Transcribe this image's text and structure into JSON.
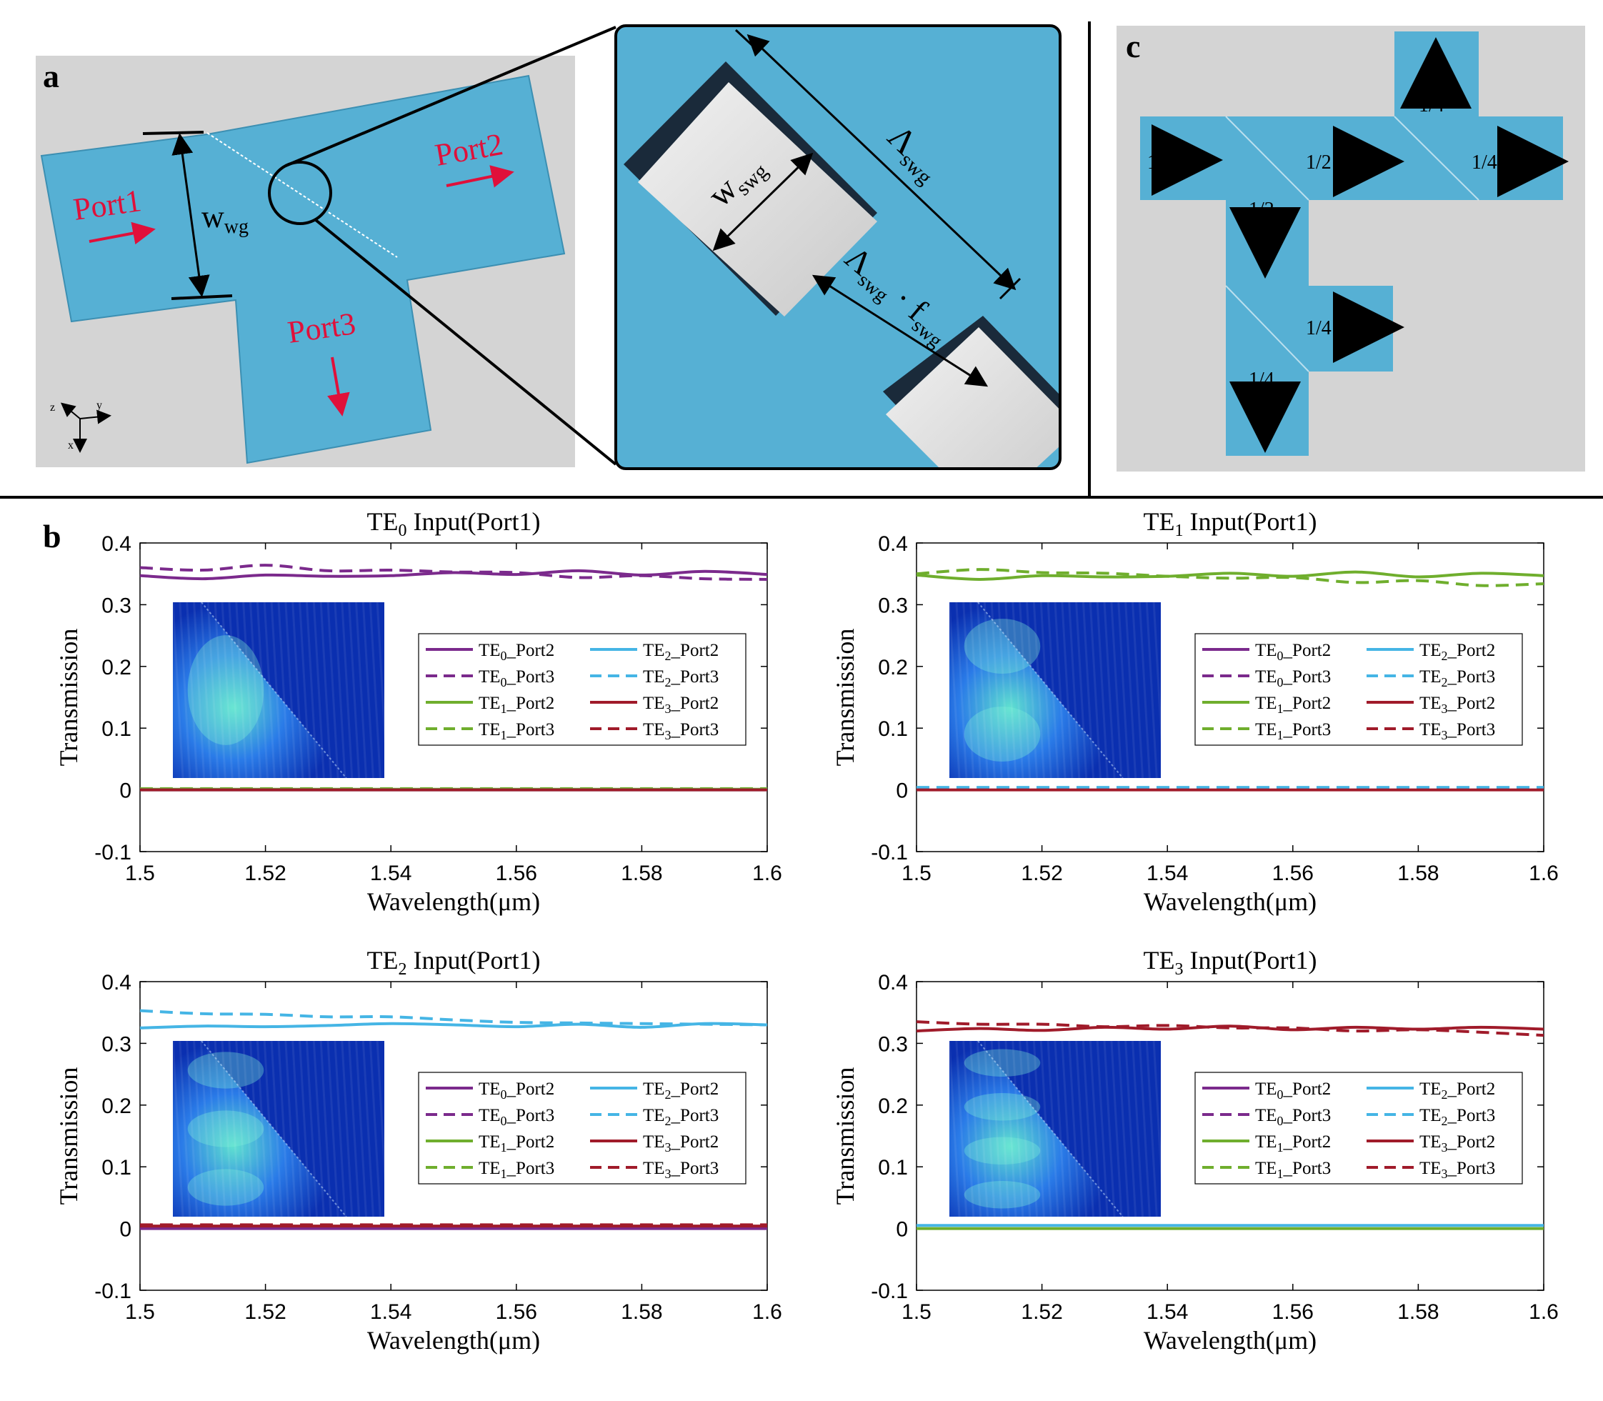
{
  "figure": {
    "panel_a": {
      "letter": "a",
      "labels": {
        "port1": "Port1",
        "port2": "Port2",
        "port3": "Port3",
        "w_wg": "w",
        "w_wg_sub": "wg"
      },
      "axes_triad": {
        "z": "z",
        "y": "y",
        "x": "x"
      },
      "zoom": {
        "lambda": "Λ",
        "lambda_sub": "swg",
        "w": "w",
        "w_sub": "swg",
        "f_expr_lambda": "Λ",
        "f_expr_sub1": "swg",
        "f_expr_dot": "·",
        "f_expr_f": "f",
        "f_expr_sub2": "swg"
      }
    },
    "panel_b": {
      "letter": "b"
    },
    "panel_c": {
      "letter": "c",
      "labels": {
        "input": "1",
        "half_right": "1/2",
        "quarter_up": "1/4",
        "quarter_right_top": "1/4",
        "half_down": "1/2",
        "quarter_right_bottom": "1/4",
        "quarter_down": "1/4"
      }
    },
    "colors": {
      "waveguide": "#56b0d4",
      "background": "#d4d4d4",
      "arrow_red": "#e0103a",
      "TE0": "#7b2a8c",
      "TE1": "#6fae2d",
      "TE2": "#45b5e5",
      "TE3": "#a01b2a"
    }
  },
  "legend_entries": [
    {
      "prefix": "TE",
      "sub": "0",
      "suffix": "_Port2",
      "mode": "TE0",
      "dash": false
    },
    {
      "prefix": "TE",
      "sub": "2",
      "suffix": "_Port2",
      "mode": "TE2",
      "dash": false
    },
    {
      "prefix": "TE",
      "sub": "0",
      "suffix": "_Port3",
      "mode": "TE0",
      "dash": true
    },
    {
      "prefix": "TE",
      "sub": "2",
      "suffix": "_Port3",
      "mode": "TE2",
      "dash": true
    },
    {
      "prefix": "TE",
      "sub": "1",
      "suffix": "_Port2",
      "mode": "TE1",
      "dash": false
    },
    {
      "prefix": "TE",
      "sub": "3",
      "suffix": "_Port2",
      "mode": "TE3",
      "dash": false
    },
    {
      "prefix": "TE",
      "sub": "1",
      "suffix": "_Port3",
      "mode": "TE1",
      "dash": true
    },
    {
      "prefix": "TE",
      "sub": "3",
      "suffix": "_Port3",
      "mode": "TE3",
      "dash": true
    }
  ],
  "chart_data": [
    {
      "type": "line",
      "title_prefix": "TE",
      "title_sub": "0",
      "title_suffix": " Input(Port1)",
      "xlabel": "Wavelength(μm)",
      "ylabel": "Transmission",
      "xlim": [
        1.5,
        1.6
      ],
      "ylim": [
        -0.1,
        0.4
      ],
      "xticks": [
        "1.5",
        "1.52",
        "1.54",
        "1.56",
        "1.58",
        "1.6"
      ],
      "yticks": [
        "-0.1",
        "0",
        "0.1",
        "0.2",
        "0.3",
        "0.4"
      ],
      "x": [
        1.5,
        1.51,
        1.52,
        1.53,
        1.54,
        1.55,
        1.56,
        1.57,
        1.58,
        1.59,
        1.6
      ],
      "series": [
        {
          "name": "TE0_Port2",
          "mode": "TE0",
          "dash": false,
          "values": [
            0.347,
            0.342,
            0.348,
            0.346,
            0.347,
            0.352,
            0.349,
            0.355,
            0.348,
            0.354,
            0.349
          ]
        },
        {
          "name": "TE0_Port3",
          "mode": "TE0",
          "dash": true,
          "values": [
            0.36,
            0.356,
            0.364,
            0.355,
            0.356,
            0.353,
            0.352,
            0.344,
            0.347,
            0.342,
            0.341
          ]
        },
        {
          "name": "TE1_Port2",
          "mode": "TE1",
          "dash": false,
          "values": [
            0.001,
            0.001,
            0.001,
            0.001,
            0.001,
            0.001,
            0.001,
            0.001,
            0.001,
            0.001,
            0.001
          ]
        },
        {
          "name": "TE1_Port3",
          "mode": "TE1",
          "dash": true,
          "values": [
            0.002,
            0.002,
            0.002,
            0.002,
            0.002,
            0.002,
            0.002,
            0.002,
            0.002,
            0.002,
            0.002
          ]
        },
        {
          "name": "TE2_Port2",
          "mode": "TE2",
          "dash": false,
          "values": [
            0.0,
            0.0,
            0.0,
            0.0,
            0.0,
            0.0,
            0.0,
            0.0,
            0.0,
            0.0,
            0.0
          ]
        },
        {
          "name": "TE3_Port2",
          "mode": "TE3",
          "dash": false,
          "values": [
            0.0,
            0.0,
            0.0,
            0.0,
            0.0,
            0.0,
            0.0,
            0.0,
            0.0,
            0.0,
            0.0
          ]
        }
      ]
    },
    {
      "type": "line",
      "title_prefix": "TE",
      "title_sub": "1",
      "title_suffix": " Input(Port1)",
      "xlabel": "Wavelength(μm)",
      "ylabel": "Transmission",
      "xlim": [
        1.5,
        1.6
      ],
      "ylim": [
        -0.1,
        0.4
      ],
      "xticks": [
        "1.5",
        "1.52",
        "1.54",
        "1.56",
        "1.58",
        "1.6"
      ],
      "yticks": [
        "-0.1",
        "0",
        "0.1",
        "0.2",
        "0.3",
        "0.4"
      ],
      "x": [
        1.5,
        1.51,
        1.52,
        1.53,
        1.54,
        1.55,
        1.56,
        1.57,
        1.58,
        1.59,
        1.6
      ],
      "series": [
        {
          "name": "TE1_Port2",
          "mode": "TE1",
          "dash": false,
          "values": [
            0.348,
            0.341,
            0.347,
            0.345,
            0.346,
            0.351,
            0.346,
            0.353,
            0.345,
            0.351,
            0.347
          ]
        },
        {
          "name": "TE1_Port3",
          "mode": "TE1",
          "dash": true,
          "values": [
            0.35,
            0.357,
            0.352,
            0.351,
            0.346,
            0.343,
            0.344,
            0.336,
            0.339,
            0.331,
            0.334
          ]
        },
        {
          "name": "TE2_Port3",
          "mode": "TE2",
          "dash": true,
          "values": [
            0.004,
            0.004,
            0.004,
            0.004,
            0.004,
            0.004,
            0.004,
            0.004,
            0.004,
            0.004,
            0.004
          ]
        },
        {
          "name": "TE3_Port2",
          "mode": "TE3",
          "dash": false,
          "values": [
            0.0,
            0.0,
            0.0,
            0.0,
            0.0,
            0.0,
            0.0,
            0.0,
            0.0,
            0.0,
            0.0
          ]
        }
      ]
    },
    {
      "type": "line",
      "title_prefix": "TE",
      "title_sub": "2",
      "title_suffix": " Input(Port1)",
      "xlabel": "Wavelength(μm)",
      "ylabel": "Transmission",
      "xlim": [
        1.5,
        1.6
      ],
      "ylim": [
        -0.1,
        0.4
      ],
      "xticks": [
        "1.5",
        "1.52",
        "1.54",
        "1.56",
        "1.58",
        "1.6"
      ],
      "yticks": [
        "-0.1",
        "0",
        "0.1",
        "0.2",
        "0.3",
        "0.4"
      ],
      "x": [
        1.5,
        1.51,
        1.52,
        1.53,
        1.54,
        1.55,
        1.56,
        1.57,
        1.58,
        1.59,
        1.6
      ],
      "series": [
        {
          "name": "TE2_Port2",
          "mode": "TE2",
          "dash": false,
          "values": [
            0.325,
            0.328,
            0.327,
            0.329,
            0.332,
            0.33,
            0.327,
            0.331,
            0.326,
            0.332,
            0.33
          ]
        },
        {
          "name": "TE2_Port3",
          "mode": "TE2",
          "dash": true,
          "values": [
            0.353,
            0.348,
            0.347,
            0.343,
            0.343,
            0.338,
            0.334,
            0.333,
            0.332,
            0.331,
            0.33
          ]
        },
        {
          "name": "TE0_Port2",
          "mode": "TE0",
          "dash": false,
          "values": [
            0.0,
            0.0,
            0.0,
            0.0,
            0.0,
            0.0,
            0.0,
            0.0,
            0.0,
            0.0,
            0.0
          ]
        },
        {
          "name": "TE3_Port2",
          "mode": "TE3",
          "dash": false,
          "values": [
            0.004,
            0.004,
            0.004,
            0.004,
            0.004,
            0.004,
            0.004,
            0.004,
            0.004,
            0.004,
            0.004
          ]
        },
        {
          "name": "TE3_Port3",
          "mode": "TE3",
          "dash": true,
          "values": [
            0.006,
            0.006,
            0.006,
            0.006,
            0.006,
            0.006,
            0.006,
            0.006,
            0.006,
            0.006,
            0.006
          ]
        }
      ]
    },
    {
      "type": "line",
      "title_prefix": "TE",
      "title_sub": "3",
      "title_suffix": " Input(Port1)",
      "xlabel": "Wavelength(μm)",
      "ylabel": "Transmission",
      "xlim": [
        1.5,
        1.6
      ],
      "ylim": [
        -0.1,
        0.4
      ],
      "xticks": [
        "1.5",
        "1.52",
        "1.54",
        "1.56",
        "1.58",
        "1.6"
      ],
      "yticks": [
        "-0.1",
        "0",
        "0.1",
        "0.2",
        "0.3",
        "0.4"
      ],
      "x": [
        1.5,
        1.51,
        1.52,
        1.53,
        1.54,
        1.55,
        1.56,
        1.57,
        1.58,
        1.59,
        1.6
      ],
      "series": [
        {
          "name": "TE3_Port2",
          "mode": "TE3",
          "dash": false,
          "values": [
            0.32,
            0.324,
            0.321,
            0.326,
            0.323,
            0.328,
            0.322,
            0.326,
            0.323,
            0.326,
            0.323
          ]
        },
        {
          "name": "TE3_Port3",
          "mode": "TE3",
          "dash": true,
          "values": [
            0.335,
            0.331,
            0.331,
            0.327,
            0.329,
            0.325,
            0.325,
            0.32,
            0.322,
            0.318,
            0.313
          ]
        },
        {
          "name": "TE2_Port2",
          "mode": "TE2",
          "dash": false,
          "values": [
            0.005,
            0.005,
            0.005,
            0.005,
            0.005,
            0.005,
            0.005,
            0.005,
            0.005,
            0.005,
            0.005
          ]
        },
        {
          "name": "TE1_Port2",
          "mode": "TE1",
          "dash": false,
          "values": [
            0.0,
            0.0,
            0.0,
            0.0,
            0.0,
            0.0,
            0.0,
            0.0,
            0.0,
            0.0,
            0.0
          ]
        }
      ]
    }
  ]
}
